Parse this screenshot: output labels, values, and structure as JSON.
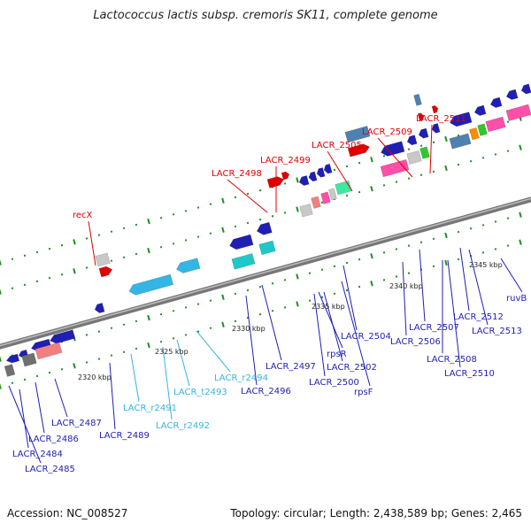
{
  "title": "Lactococcus lactis subsp. cremoris SK11, complete genome",
  "footer": {
    "accession": "Accession: NC_008527",
    "topology": "Topology: circular; Length: 2,438,589 bp; Genes: 2,465"
  },
  "colors": {
    "backbone": "#8c8c8c",
    "tick": "#1f8f1f",
    "red": "#e00000",
    "blue": "#1f1fb4",
    "cyan": "#33b5e5",
    "teal": "#1fc8c8",
    "gray": "#c8c8c8",
    "darkgray": "#707070",
    "steel": "#4f81b0",
    "salmon": "#f08080",
    "pink": "#ff4fa8",
    "green": "#2ec82e",
    "orange": "#ff8c00",
    "mint": "#3de8a0"
  },
  "scale_labels": [
    "2320 kbp",
    "2325 kbp",
    "2330 kbp",
    "2335 kbp",
    "2340 kbp",
    "2345 kbp"
  ],
  "features": [
    {
      "label": "LACR_2511",
      "color": "red"
    },
    {
      "label": "LACR_2509",
      "color": "red"
    },
    {
      "label": "LACR_2505",
      "color": "red"
    },
    {
      "label": "LACR_2499",
      "color": "red"
    },
    {
      "label": "LACR_2498",
      "color": "red"
    },
    {
      "label": "recX",
      "color": "red"
    },
    {
      "label": "ruvB",
      "color": "blue"
    },
    {
      "label": "LACR_2512",
      "color": "blue"
    },
    {
      "label": "LACR_2513",
      "color": "blue"
    },
    {
      "label": "LACR_2507",
      "color": "blue"
    },
    {
      "label": "LACR_2506",
      "color": "blue"
    },
    {
      "label": "LACR_2508",
      "color": "blue"
    },
    {
      "label": "LACR_2510",
      "color": "blue"
    },
    {
      "label": "LACR_2504",
      "color": "blue"
    },
    {
      "label": "rpsR",
      "color": "blue"
    },
    {
      "label": "LACR_2502",
      "color": "blue"
    },
    {
      "label": "LACR_2500",
      "color": "blue"
    },
    {
      "label": "rpsF",
      "color": "blue"
    },
    {
      "label": "LACR_2497",
      "color": "blue"
    },
    {
      "label": "LACR_2496",
      "color": "blue"
    },
    {
      "label": "LACR_r2494",
      "color": "cyan"
    },
    {
      "label": "LACR_t2493",
      "color": "cyan"
    },
    {
      "label": "LACR_r2491",
      "color": "cyan"
    },
    {
      "label": "LACR_r2492",
      "color": "cyan"
    },
    {
      "label": "LACR_2489",
      "color": "blue"
    },
    {
      "label": "LACR_2487",
      "color": "blue"
    },
    {
      "label": "LACR_2486",
      "color": "blue"
    },
    {
      "label": "LACR_2484",
      "color": "blue"
    },
    {
      "label": "LACR_2485",
      "color": "blue"
    }
  ]
}
